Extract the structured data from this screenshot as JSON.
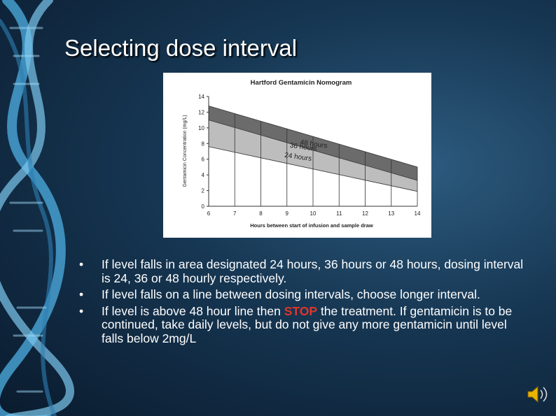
{
  "slide": {
    "title": "Selecting dose interval",
    "bullets": [
      [
        "If level falls in area designated 24 hours, 36 hours or 48 hours, dosing interval is 24, 36 or 48 hourly respectively."
      ],
      [
        "If level falls on a line between dosing intervals, choose longer interval."
      ],
      [
        "If level is above 48 hour line then ",
        "STOP",
        " the treatment. If gentamicin is to be continued, take daily levels, but do not give any more gentamicin until level falls below 2mg/L"
      ]
    ]
  },
  "chart_data": {
    "type": "line",
    "title": "Hartford Gentamicin Nomogram",
    "x_label": "Hours between start of infusion and sample draw",
    "y_label": "Gentamicin Concentration (mg/L)",
    "x": [
      6,
      14
    ],
    "series": [
      {
        "color": "#6b6b6b",
        "values": [
          12.8,
          5.0
        ]
      },
      {
        "color": "#bdbdbd",
        "values": [
          11.0,
          3.3
        ]
      },
      {
        "color": "#ffffff",
        "values": [
          7.6,
          1.9
        ]
      }
    ],
    "annotations": [
      "48 hours",
      "36 hours",
      "24 hours"
    ],
    "xlim": [
      6,
      14
    ],
    "xticks": [
      6,
      7,
      8,
      9,
      10,
      11,
      12,
      13,
      14
    ],
    "ylim": [
      0,
      14
    ],
    "yticks": [
      0,
      2,
      4,
      6,
      8,
      10,
      12,
      14
    ]
  }
}
